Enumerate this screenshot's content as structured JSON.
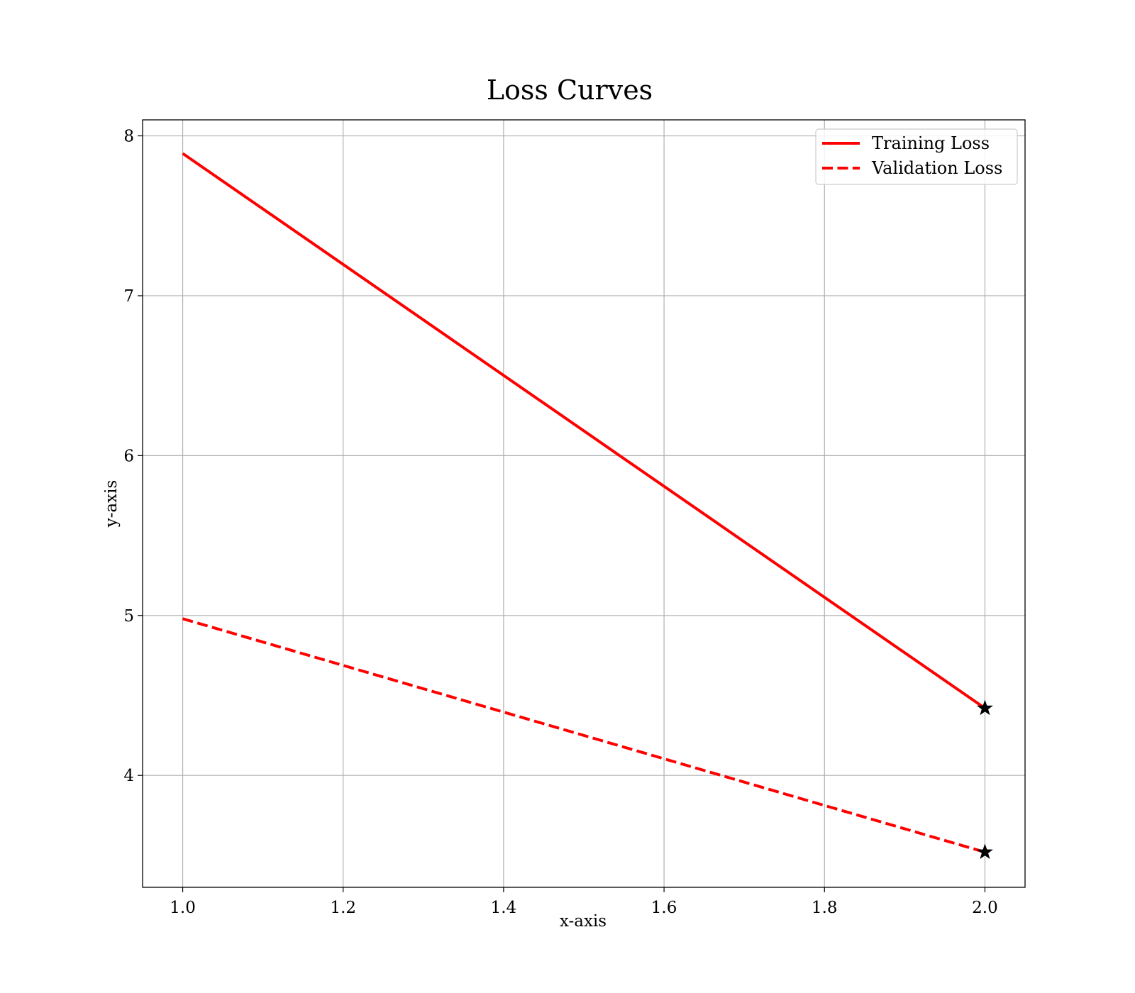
{
  "chart_data": {
    "type": "line",
    "title": "Loss Curves",
    "xlabel": "x-axis",
    "ylabel": "y-axis",
    "xlim": [
      0.95,
      2.05
    ],
    "ylim": [
      3.3,
      8.1
    ],
    "xticks": [
      1.0,
      1.2,
      1.4,
      1.6,
      1.8,
      2.0
    ],
    "xtick_labels": [
      "1.0",
      "1.2",
      "1.4",
      "1.6",
      "1.8",
      "2.0"
    ],
    "yticks": [
      4,
      5,
      6,
      7,
      8
    ],
    "ytick_labels": [
      "4",
      "5",
      "6",
      "7",
      "8"
    ],
    "grid": true,
    "legend_position": "top-right",
    "series": [
      {
        "name": "Training Loss",
        "x": [
          1.0,
          2.0
        ],
        "y": [
          7.89,
          4.42
        ],
        "color": "#ff0000",
        "line_style": "solid",
        "end_marker": "star"
      },
      {
        "name": "Validation Loss",
        "x": [
          1.0,
          2.0
        ],
        "y": [
          4.98,
          3.52
        ],
        "color": "#ff0000",
        "line_style": "dashed",
        "end_marker": "star"
      }
    ],
    "marker_color": "#000000"
  }
}
